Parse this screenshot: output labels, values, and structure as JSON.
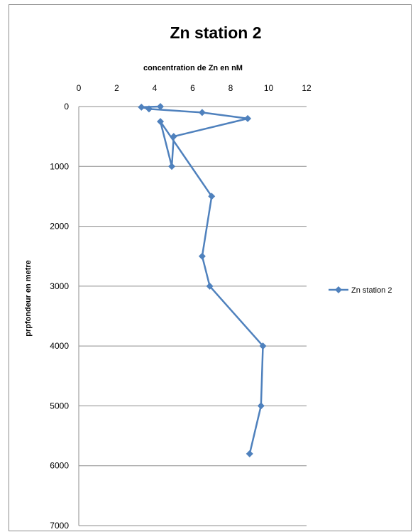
{
  "chart_data": {
    "type": "scatter",
    "title": "Zn station 2",
    "xlabel": "concentration de Zn en nM",
    "ylabel": "prpfondeur en metre",
    "xlim": [
      0,
      12
    ],
    "ylim": [
      0,
      7000
    ],
    "y_inverted": true,
    "x_axis_position": "top",
    "x_ticks": [
      "0",
      "2",
      "4",
      "6",
      "8",
      "10",
      "12"
    ],
    "y_ticks": [
      "0",
      "1000",
      "2000",
      "3000",
      "4000",
      "5000",
      "6000",
      "7000"
    ],
    "grid": "horizontal",
    "legend_position": "right",
    "series_color": "#4f81bd",
    "series": [
      {
        "name": "Zn station 2",
        "marker": "diamond",
        "points": [
          {
            "x": 4.3,
            "y": 0
          },
          {
            "x": 3.3,
            "y": 10
          },
          {
            "x": 3.7,
            "y": 40
          },
          {
            "x": 6.5,
            "y": 100
          },
          {
            "x": 8.9,
            "y": 200
          },
          {
            "x": 5.0,
            "y": 500
          },
          {
            "x": 4.9,
            "y": 1000
          },
          {
            "x": 4.3,
            "y": 250
          },
          {
            "x": 7.0,
            "y": 1500
          },
          {
            "x": 6.5,
            "y": 2500
          },
          {
            "x": 6.9,
            "y": 3000
          },
          {
            "x": 9.7,
            "y": 4000
          },
          {
            "x": 9.6,
            "y": 5000
          },
          {
            "x": 9.0,
            "y": 5800
          }
        ]
      }
    ]
  }
}
